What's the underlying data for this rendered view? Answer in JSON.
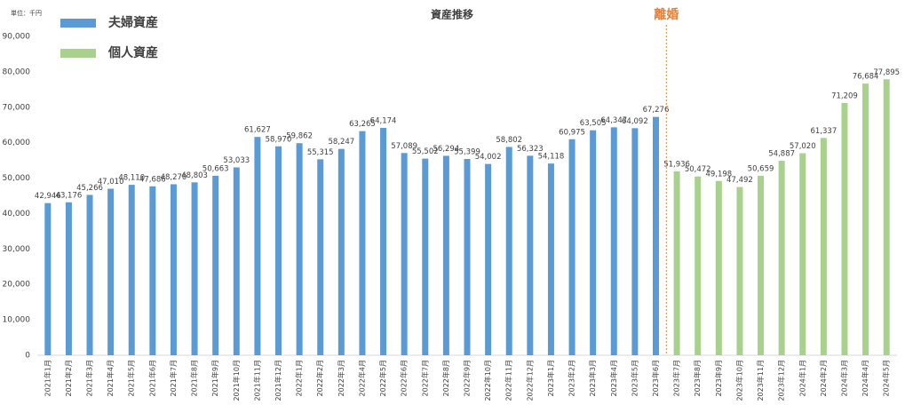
{
  "chart_data": {
    "type": "bar",
    "title": "資産推移",
    "unit_label": "単位：千円",
    "annotation": "離婚",
    "categories": [
      "2021年1月",
      "2021年2月",
      "2021年3月",
      "2021年4月",
      "2021年5月",
      "2021年6月",
      "2021年7月",
      "2021年8月",
      "2021年9月",
      "2021年10月",
      "2021年11月",
      "2021年12月",
      "2022年1月",
      "2022年2月",
      "2022年3月",
      "2022年4月",
      "2022年5月",
      "2022年6月",
      "2022年7月",
      "2022年8月",
      "2022年9月",
      "2022年10月",
      "2022年11月",
      "2022年12月",
      "2023年1月",
      "2023年2月",
      "2023年3月",
      "2023年4月",
      "2023年5月",
      "2023年6月",
      "2023年7月",
      "2023年8月",
      "2023年9月",
      "2023年10月",
      "2023年11月",
      "2023年12月",
      "2024年1月",
      "2024年2月",
      "2024年3月",
      "2024年4月",
      "2024年5月"
    ],
    "series": [
      {
        "name": "夫婦資産",
        "color": "#5b9bd5",
        "values": [
          42946,
          43176,
          45266,
          47010,
          48110,
          47686,
          48270,
          48803,
          50663,
          53033,
          61627,
          58970,
          59862,
          55315,
          58247,
          63265,
          64174,
          57089,
          55502,
          56294,
          55399,
          54002,
          58802,
          56323,
          54118,
          60975,
          63505,
          64347,
          64092,
          67276,
          null,
          null,
          null,
          null,
          null,
          null,
          null,
          null,
          null,
          null,
          null
        ],
        "value_labels": [
          "42,946",
          "43,176",
          "45,266",
          "47,010",
          "48,110",
          "47,686",
          "48,270",
          "48,803",
          "50,663",
          "53,033",
          "61,627",
          "58,970",
          "59,862",
          "55,315",
          "58,247",
          "63,265",
          "64,174",
          "57,089",
          "55,502",
          "56,294",
          "55,399",
          "54,002",
          "58,802",
          "56,323",
          "54,118",
          "60,975",
          "63,505",
          "64,347",
          "64,092",
          "67,276",
          null,
          null,
          null,
          null,
          null,
          null,
          null,
          null,
          null,
          null,
          null
        ]
      },
      {
        "name": "個人資産",
        "color": "#a9d18e",
        "values": [
          null,
          null,
          null,
          null,
          null,
          null,
          null,
          null,
          null,
          null,
          null,
          null,
          null,
          null,
          null,
          null,
          null,
          null,
          null,
          null,
          null,
          null,
          null,
          null,
          null,
          null,
          null,
          null,
          null,
          null,
          51936,
          50472,
          49198,
          47492,
          50659,
          54887,
          57020,
          61337,
          71209,
          76684,
          77895
        ],
        "value_labels": [
          null,
          null,
          null,
          null,
          null,
          null,
          null,
          null,
          null,
          null,
          null,
          null,
          null,
          null,
          null,
          null,
          null,
          null,
          null,
          null,
          null,
          null,
          null,
          null,
          null,
          null,
          null,
          null,
          null,
          null,
          "51,936",
          "50,472",
          "49,198",
          "47,492",
          "50,659",
          "54,887",
          "57,020",
          "61,337",
          "71,209",
          "76,684",
          "77,895"
        ]
      }
    ],
    "ylim": [
      0,
      90000
    ],
    "yticks": [
      0,
      {
        "value": 10000,
        "label": "10,000"
      },
      {
        "value": 20000,
        "label": "20,000"
      },
      {
        "value": 30000,
        "label": "30,000"
      },
      {
        "value": 40000,
        "label": "40,000"
      },
      {
        "value": 50000,
        "label": "50,000"
      },
      {
        "value": 60000,
        "label": "60,000"
      },
      {
        "value": 70000,
        "label": "70,000"
      },
      {
        "value": 80000,
        "label": "80,000"
      },
      {
        "value": 90000,
        "label": "90,000"
      }
    ],
    "grid": false
  }
}
